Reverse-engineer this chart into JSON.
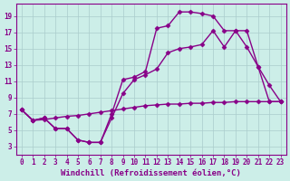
{
  "background_color": "#cceee8",
  "grid_color": "#aacccc",
  "line_color": "#880088",
  "marker": "D",
  "markersize": 2.5,
  "linewidth": 1.0,
  "xlabel": "Windchill (Refroidissement éolien,°C)",
  "xlabel_fontsize": 6.5,
  "tick_fontsize": 5.5,
  "xlim": [
    -0.5,
    23.5
  ],
  "ylim": [
    2.0,
    20.5
  ],
  "yticks": [
    3,
    5,
    7,
    9,
    11,
    13,
    15,
    17,
    19
  ],
  "xticks": [
    0,
    1,
    2,
    3,
    4,
    5,
    6,
    7,
    8,
    9,
    10,
    11,
    12,
    13,
    14,
    15,
    16,
    17,
    18,
    19,
    20,
    21,
    22,
    23
  ],
  "curve1_x": [
    0,
    1,
    2,
    3,
    4,
    5,
    6,
    7,
    8,
    9,
    10,
    11,
    12,
    13,
    14,
    15,
    16,
    17,
    18,
    19,
    20,
    21,
    22,
    23
  ],
  "curve1_y": [
    7.5,
    6.2,
    6.3,
    6.5,
    6.7,
    6.8,
    7.0,
    7.2,
    7.4,
    7.6,
    7.8,
    8.0,
    8.1,
    8.2,
    8.2,
    8.3,
    8.3,
    8.4,
    8.4,
    8.5,
    8.5,
    8.5,
    8.5,
    8.5
  ],
  "curve2_x": [
    0,
    1,
    2,
    3,
    4,
    5,
    6,
    7,
    8,
    9,
    10,
    11,
    12,
    13,
    14,
    15,
    16,
    17,
    18,
    19,
    20,
    21,
    22,
    23
  ],
  "curve2_y": [
    7.5,
    6.2,
    6.5,
    5.2,
    5.2,
    3.8,
    3.5,
    3.5,
    6.5,
    9.5,
    11.2,
    11.8,
    12.5,
    14.5,
    15.0,
    15.2,
    15.5,
    17.2,
    15.2,
    17.2,
    15.2,
    12.8,
    8.5,
    8.5
  ],
  "curve3_x": [
    0,
    1,
    2,
    3,
    4,
    5,
    6,
    7,
    8,
    9,
    10,
    11,
    12,
    13,
    14,
    15,
    16,
    17,
    18,
    19,
    20,
    21,
    22,
    23
  ],
  "curve3_y": [
    7.5,
    6.2,
    6.5,
    5.2,
    5.2,
    3.8,
    3.5,
    3.5,
    7.0,
    11.2,
    11.5,
    12.2,
    17.5,
    17.8,
    19.5,
    19.5,
    19.3,
    19.0,
    17.2,
    17.2,
    17.2,
    12.8,
    10.5,
    8.5
  ]
}
